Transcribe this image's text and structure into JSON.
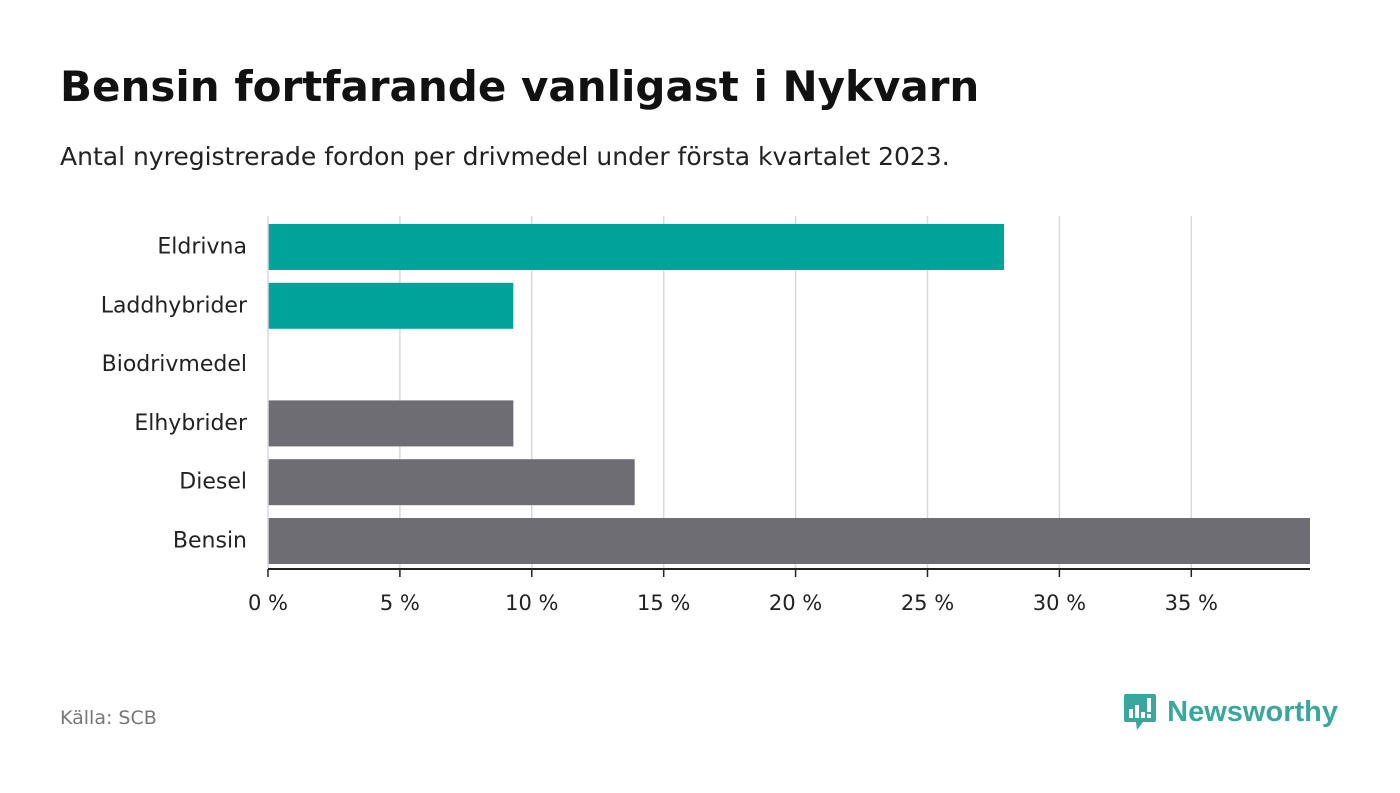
{
  "header": {
    "title": "Bensin fortfarande vanligast i Nykvarn",
    "subtitle": "Antal nyregistrerade fordon per drivmedel under första kvartalet 2023."
  },
  "footer": {
    "source": "Källa: SCB",
    "brand": "Newsworthy"
  },
  "colors": {
    "electric": "#00a398",
    "fossil": "#6e6d74",
    "grid": "#d9d9d9",
    "axis": "#222222",
    "brand": "#3aa79d"
  },
  "chart_data": {
    "type": "bar",
    "orientation": "horizontal",
    "title": "Bensin fortfarande vanligast i Nykvarn",
    "subtitle": "Antal nyregistrerade fordon per drivmedel under första kvartalet 2023.",
    "categories": [
      "Eldrivna",
      "Laddhybrider",
      "Biodrivmedel",
      "Elhybrider",
      "Diesel",
      "Bensin"
    ],
    "values": [
      27.9,
      9.3,
      0,
      9.3,
      13.9,
      39.5
    ],
    "bar_colors": [
      "electric",
      "electric",
      "electric",
      "fossil",
      "fossil",
      "fossil"
    ],
    "xlim": [
      0,
      39.5
    ],
    "xticks": [
      0,
      5,
      10,
      15,
      20,
      25,
      30,
      35
    ],
    "xtick_labels": [
      "0 %",
      "5 %",
      "10 %",
      "15 %",
      "20 %",
      "25 %",
      "30 %",
      "35 %"
    ],
    "xlabel": "",
    "ylabel": "",
    "grid": "vertical",
    "legend": "none"
  }
}
